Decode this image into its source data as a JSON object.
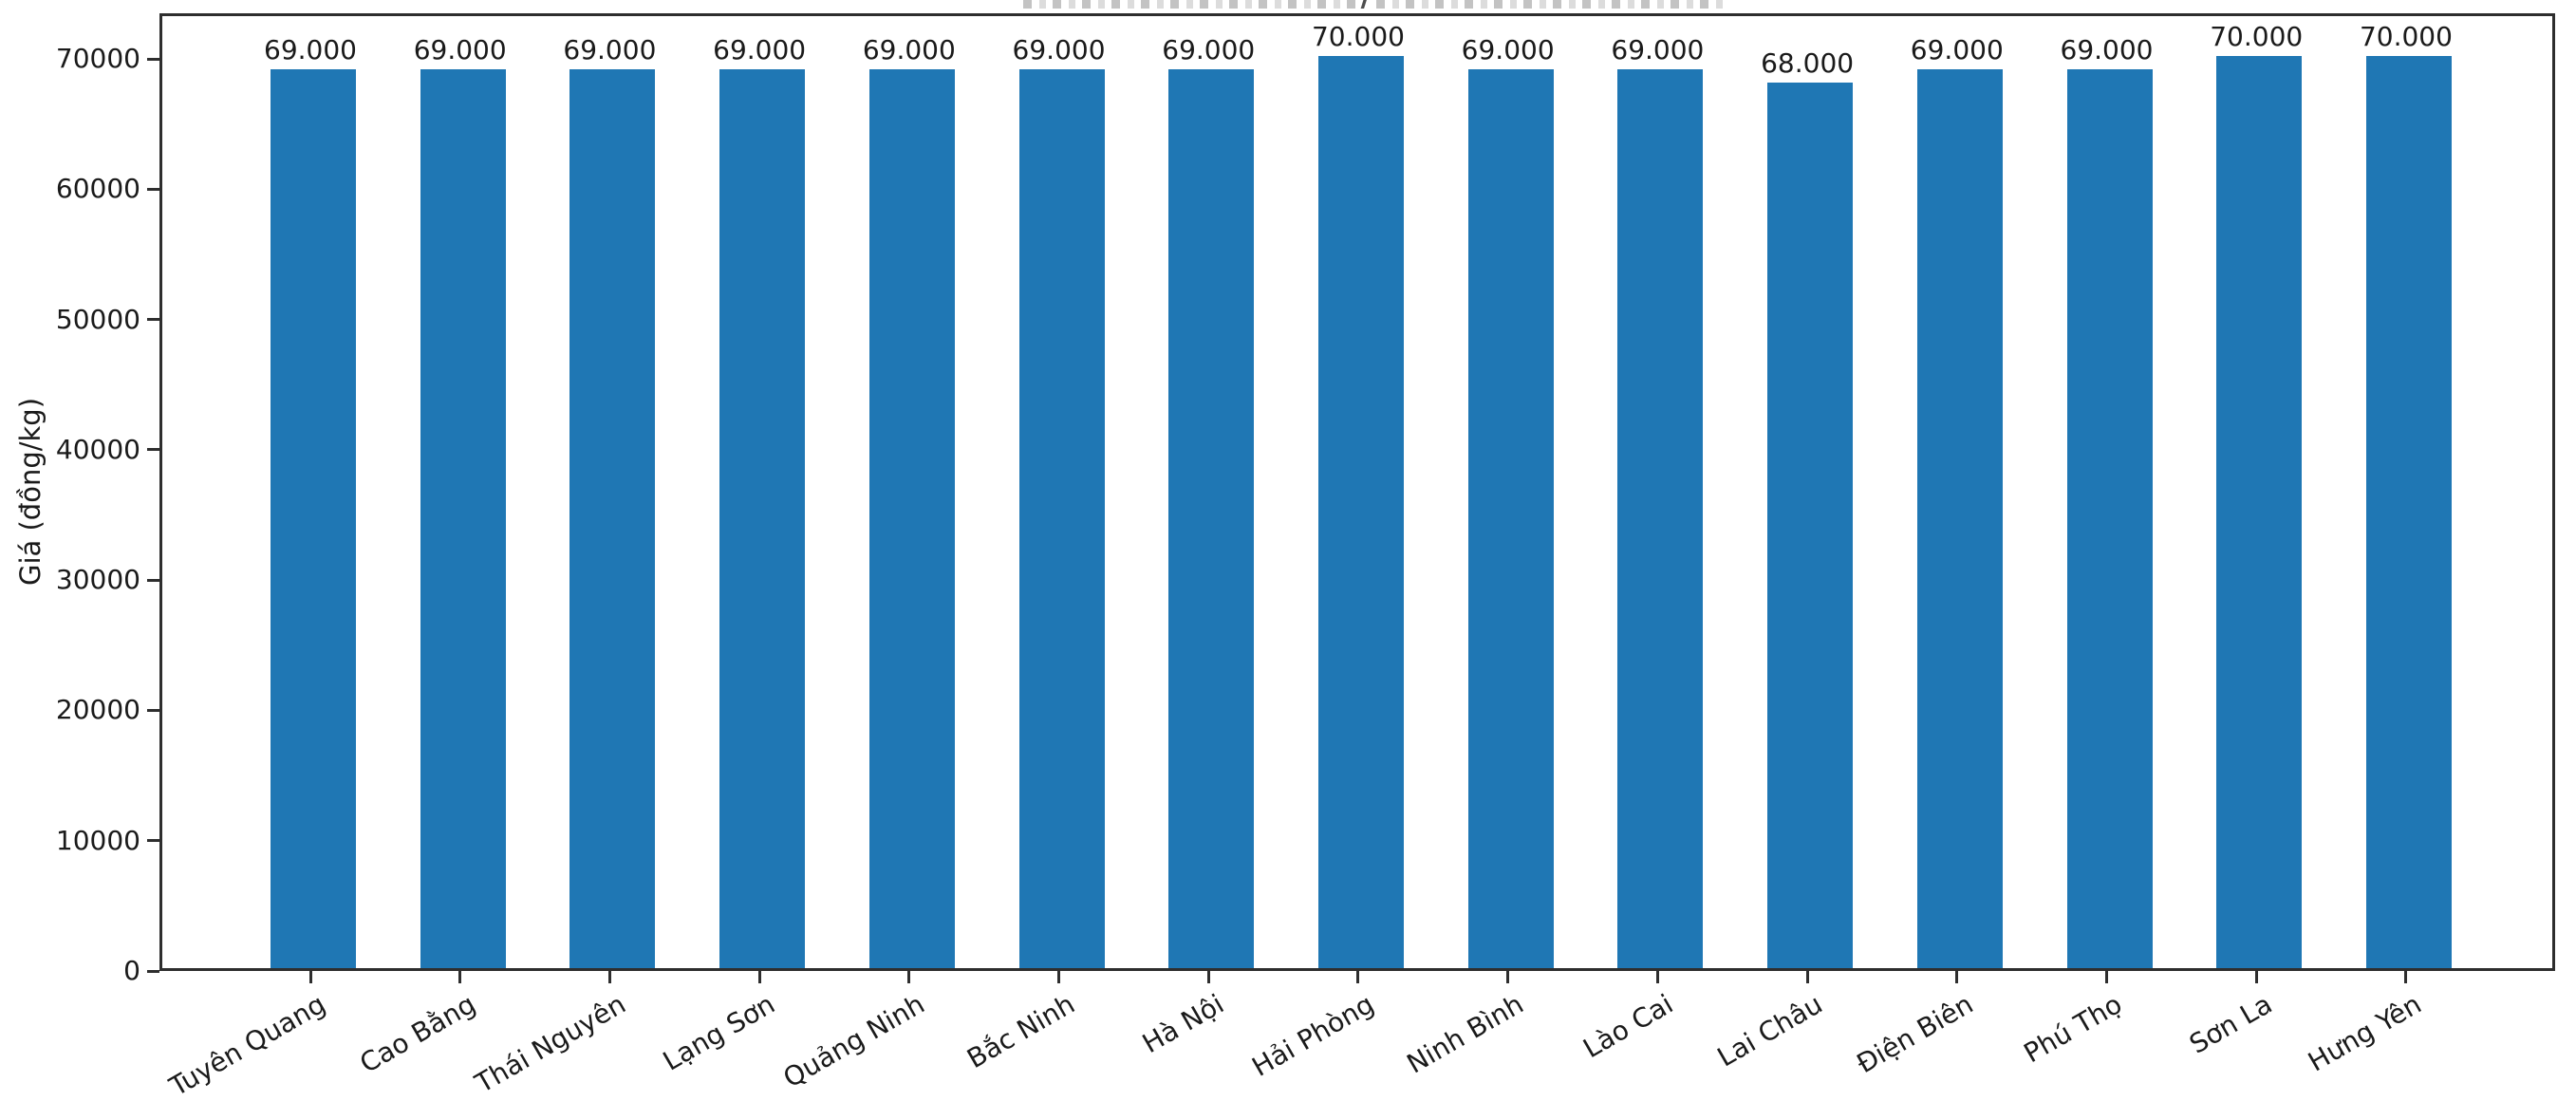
{
  "header": {
    "cropped_title_fragment": "/"
  },
  "chart_data": {
    "type": "bar",
    "title": "",
    "xlabel": "",
    "ylabel": "Giá (đồng/kg)",
    "categories": [
      "Tuyên Quang",
      "Cao Bằng",
      "Thái Nguyên",
      "Lạng Sơn",
      "Quảng Ninh",
      "Bắc Ninh",
      "Hà Nội",
      "Hải Phòng",
      "Ninh Bình",
      "Lào Cai",
      "Lai Châu",
      "Điện Biên",
      "Phú Thọ",
      "Sơn La",
      "Hưng Yên"
    ],
    "values": [
      69000,
      69000,
      69000,
      69000,
      69000,
      69000,
      69000,
      70000,
      69000,
      69000,
      68000,
      69000,
      69000,
      70000,
      70000
    ],
    "value_labels": [
      "69.000",
      "69.000",
      "69.000",
      "69.000",
      "69.000",
      "69.000",
      "69.000",
      "70.000",
      "69.000",
      "69.000",
      "68.000",
      "69.000",
      "69.000",
      "70.000",
      "70.000"
    ],
    "yticks": [
      0,
      10000,
      20000,
      30000,
      40000,
      50000,
      60000,
      70000
    ],
    "ylim": [
      0,
      73500
    ],
    "grid": false,
    "legend": "none",
    "bar_color": "#1f77b4",
    "xtick_rotation_deg": 30
  }
}
